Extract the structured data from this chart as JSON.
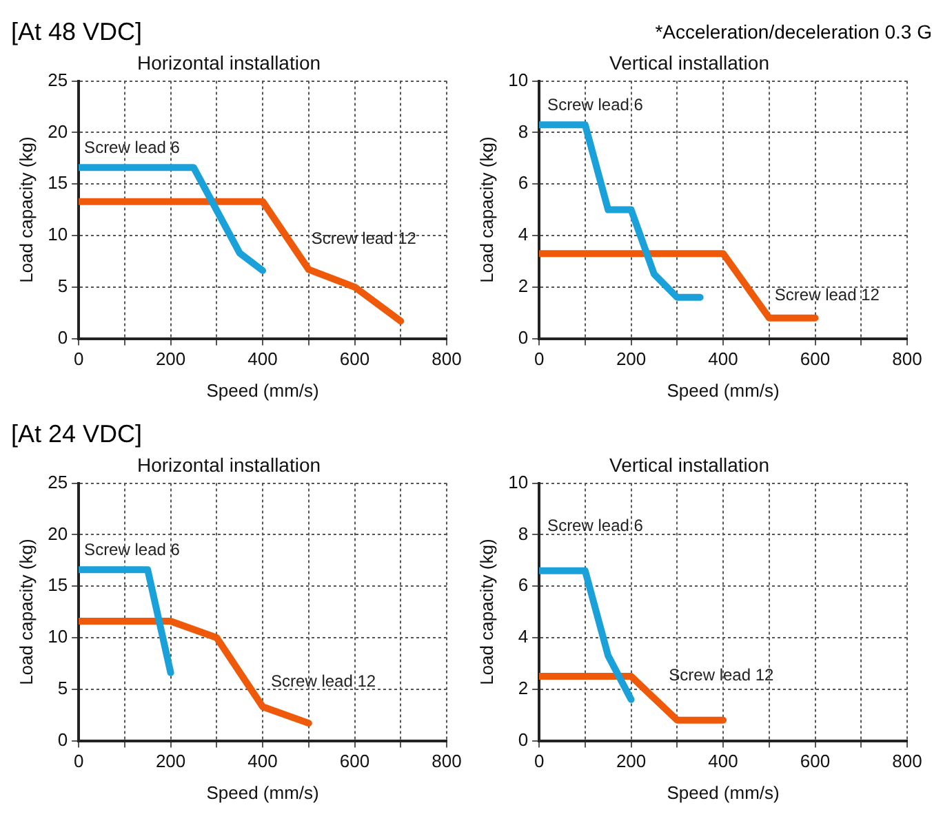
{
  "chart_data": [
    {
      "type": "line",
      "subtitle": "[At 48 VDC]",
      "title": "Horizontal installation",
      "xlabel": "Speed (mm/s)",
      "ylabel": "Load capacity (kg)",
      "xlim": [
        0,
        800
      ],
      "xticks": [
        0,
        {
          "value": 100,
          "label": null
        },
        200,
        {
          "value": 300,
          "label": null
        },
        400,
        {
          "value": 500,
          "label": null
        },
        600,
        {
          "value": 700,
          "label": null
        },
        800
      ],
      "ylim": [
        0,
        25
      ],
      "yticks": [
        0,
        5,
        10,
        15,
        20,
        25
      ],
      "grid": true,
      "legend": false,
      "marker": "none",
      "line_style": "solid",
      "series": [
        {
          "name": "Screw lead 6",
          "color": "#1ba1d9",
          "x": [
            0,
            250,
            350,
            400
          ],
          "values": [
            16.6,
            16.6,
            8.3,
            6.6
          ]
        },
        {
          "name": "Screw lead 12",
          "color": "#ef5a0a",
          "x": [
            0,
            400,
            500,
            600,
            700
          ],
          "values": [
            13.3,
            13.3,
            6.7,
            5,
            1.7
          ]
        }
      ]
    },
    {
      "type": "line",
      "annotations": [
        "*Acceleration/deceleration 0.3 G"
      ],
      "title": "Vertical installation",
      "xlabel": "Speed (mm/s)",
      "ylabel": "Load capacity (kg)",
      "xlim": [
        0,
        800
      ],
      "xticks": [
        0,
        {
          "value": 100,
          "label": null
        },
        200,
        {
          "value": 300,
          "label": null
        },
        400,
        {
          "value": 500,
          "label": null
        },
        600,
        {
          "value": 700,
          "label": null
        },
        800
      ],
      "ylim": [
        0,
        10
      ],
      "yticks": [
        0,
        2,
        4,
        6,
        8,
        10
      ],
      "grid": true,
      "legend": false,
      "marker": "none",
      "line_style": "solid",
      "series": [
        {
          "name": "Screw lead 6",
          "color": "#1ba1d9",
          "x": [
            0,
            100,
            150,
            200,
            250,
            300,
            350
          ],
          "values": [
            8.3,
            8.3,
            5,
            5,
            2.5,
            1.6,
            1.6
          ]
        },
        {
          "name": "Screw lead 12",
          "color": "#ef5a0a",
          "x": [
            0,
            400,
            500,
            600
          ],
          "values": [
            3.3,
            3.3,
            0.8,
            0.8
          ]
        }
      ]
    },
    {
      "type": "line",
      "subtitle": "[At 24 VDC]",
      "title": "Horizontal installation",
      "xlabel": "Speed (mm/s)",
      "ylabel": "Load capacity (kg)",
      "xlim": [
        0,
        800
      ],
      "xticks": [
        0,
        {
          "value": 100,
          "label": null
        },
        200,
        {
          "value": 300,
          "label": null
        },
        400,
        {
          "value": 500,
          "label": null
        },
        600,
        {
          "value": 700,
          "label": null
        },
        800
      ],
      "ylim": [
        0,
        25
      ],
      "yticks": [
        0,
        5,
        10,
        15,
        20,
        25
      ],
      "grid": true,
      "legend": false,
      "marker": "none",
      "line_style": "solid",
      "series": [
        {
          "name": "Screw lead 6",
          "color": "#1ba1d9",
          "x": [
            0,
            150,
            200
          ],
          "values": [
            16.6,
            16.6,
            6.6
          ]
        },
        {
          "name": "Screw lead 12",
          "color": "#ef5a0a",
          "x": [
            0,
            200,
            300,
            400,
            500
          ],
          "values": [
            11.6,
            11.6,
            10,
            3.3,
            1.7
          ]
        }
      ]
    },
    {
      "type": "line",
      "title": "Vertical installation",
      "xlabel": "Speed (mm/s)",
      "ylabel": "Load capacity (kg)",
      "xlim": [
        0,
        800
      ],
      "xticks": [
        0,
        {
          "value": 100,
          "label": null
        },
        200,
        {
          "value": 300,
          "label": null
        },
        400,
        {
          "value": 500,
          "label": null
        },
        600,
        {
          "value": 700,
          "label": null
        },
        800
      ],
      "ylim": [
        0,
        10
      ],
      "yticks": [
        0,
        2,
        4,
        6,
        8,
        10
      ],
      "grid": true,
      "legend": false,
      "marker": "none",
      "line_style": "solid",
      "series": [
        {
          "name": "Screw lead 6",
          "color": "#1ba1d9",
          "x": [
            0,
            100,
            150,
            200
          ],
          "values": [
            6.6,
            6.6,
            3.3,
            1.6
          ]
        },
        {
          "name": "Screw lead 12",
          "color": "#ef5a0a",
          "x": [
            0,
            200,
            300,
            400
          ],
          "values": [
            2.5,
            2.5,
            0.8,
            0.8
          ]
        }
      ]
    }
  ]
}
